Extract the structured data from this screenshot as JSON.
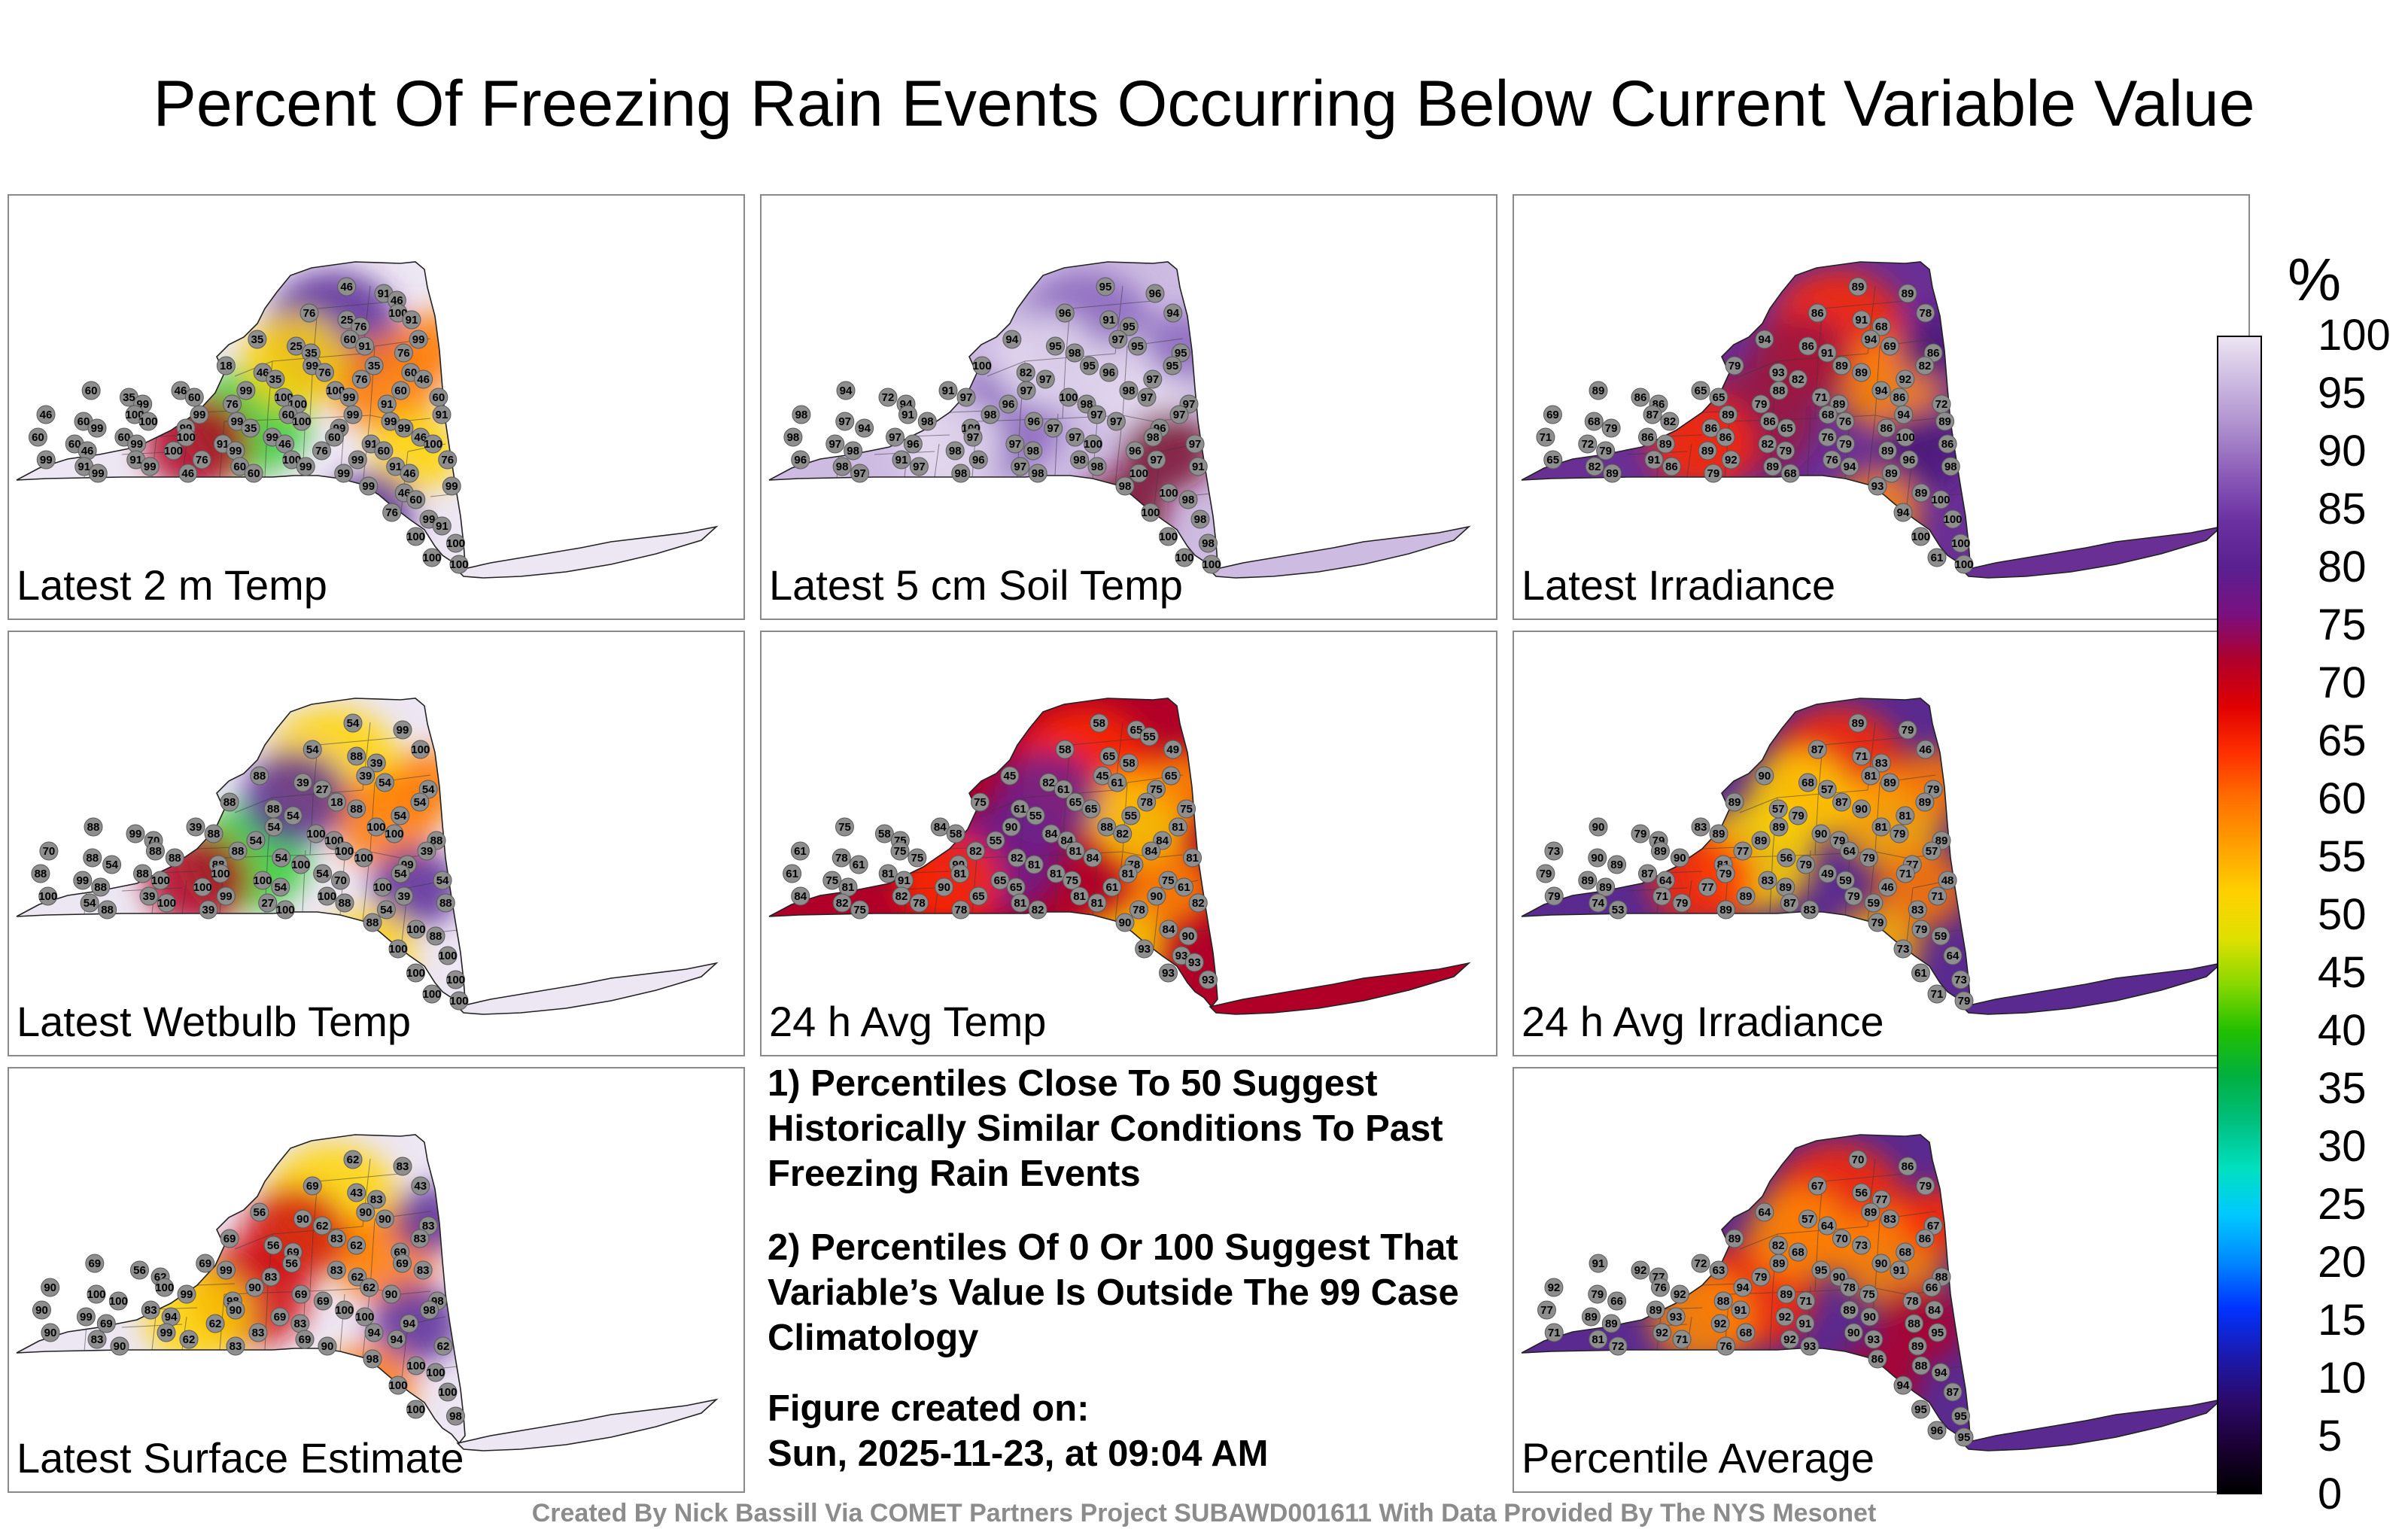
{
  "title": "Percent Of Freezing Rain Events Occurring Below Current Variable Value",
  "panels": [
    {
      "label": "Latest 2 m Temp",
      "station_values": [
        46,
        91,
        46,
        76,
        25,
        76,
        100,
        91,
        35,
        25,
        35,
        60,
        91,
        76,
        99,
        18,
        46,
        35,
        99,
        76,
        76,
        35,
        60,
        46,
        60,
        35,
        99,
        46,
        60,
        76,
        99,
        100,
        100,
        100,
        99,
        91,
        60,
        60,
        46,
        60,
        99,
        100,
        100,
        99,
        99,
        99,
        35,
        60,
        100,
        99,
        99,
        99,
        99,
        91,
        60,
        60,
        46,
        60,
        99,
        100,
        100,
        91,
        99,
        99,
        46,
        76,
        60,
        91,
        60,
        46,
        100,
        99,
        91,
        99,
        91,
        99,
        46,
        76,
        60,
        60,
        100,
        99,
        99,
        99,
        91,
        46,
        76,
        99,
        46,
        60,
        99,
        76,
        99,
        91,
        100,
        100,
        100,
        100
      ]
    },
    {
      "label": "Latest 5 cm Soil Temp",
      "station_values": [
        95,
        96,
        96,
        91,
        95,
        94,
        94,
        95,
        98,
        97,
        95,
        95,
        100,
        82,
        97,
        95,
        96,
        97,
        95,
        94,
        72,
        94,
        91,
        97,
        96,
        97,
        100,
        98,
        98,
        97,
        97,
        98,
        97,
        94,
        91,
        98,
        100,
        98,
        96,
        97,
        97,
        97,
        96,
        97,
        98,
        97,
        98,
        97,
        96,
        98,
        97,
        97,
        98,
        97,
        100,
        96,
        98,
        97,
        96,
        98,
        97,
        91,
        97,
        98,
        96,
        97,
        98,
        98,
        98,
        100,
        97,
        91,
        98,
        100,
        98,
        100,
        98,
        100,
        98,
        100,
        100
      ]
    },
    {
      "label": "Latest Irradiance",
      "station_values": [
        89,
        89,
        86,
        91,
        68,
        78,
        94,
        86,
        91,
        94,
        69,
        86,
        79,
        93,
        82,
        89,
        89,
        92,
        82,
        89,
        86,
        86,
        65,
        65,
        79,
        88,
        71,
        89,
        94,
        86,
        72,
        69,
        68,
        79,
        87,
        82,
        86,
        89,
        86,
        65,
        68,
        76,
        86,
        94,
        89,
        71,
        72,
        79,
        86,
        89,
        89,
        86,
        82,
        79,
        76,
        79,
        89,
        100,
        86,
        65,
        82,
        89,
        91,
        86,
        79,
        92,
        89,
        68,
        76,
        94,
        89,
        96,
        98,
        93,
        89,
        100,
        94,
        100,
        100,
        100,
        61,
        100
      ]
    },
    {
      "label": "Latest Wetbulb Temp",
      "station_values": [
        54,
        99,
        54,
        88,
        39,
        100,
        88,
        39,
        27,
        39,
        54,
        54,
        88,
        88,
        54,
        18,
        88,
        54,
        54,
        88,
        99,
        70,
        39,
        88,
        54,
        54,
        100,
        100,
        100,
        100,
        88,
        70,
        88,
        54,
        88,
        88,
        88,
        88,
        54,
        100,
        100,
        100,
        99,
        39,
        88,
        99,
        88,
        88,
        100,
        100,
        100,
        100,
        54,
        54,
        70,
        100,
        54,
        54,
        100,
        54,
        88,
        39,
        100,
        39,
        99,
        27,
        100,
        100,
        88,
        54,
        39,
        88,
        88,
        100,
        88,
        100,
        100,
        100,
        100,
        100,
        100
      ]
    },
    {
      "label": "24 h Avg Temp",
      "station_values": [
        58,
        65,
        55,
        58,
        65,
        58,
        49,
        45,
        82,
        61,
        45,
        61,
        75,
        65,
        75,
        61,
        55,
        65,
        65,
        55,
        78,
        75,
        75,
        58,
        75,
        84,
        58,
        55,
        90,
        84,
        84,
        88,
        82,
        84,
        81,
        61,
        78,
        61,
        75,
        75,
        90,
        82,
        82,
        81,
        81,
        84,
        78,
        84,
        81,
        61,
        75,
        81,
        81,
        91,
        90,
        81,
        65,
        65,
        81,
        75,
        61,
        81,
        75,
        61,
        84,
        82,
        75,
        82,
        78,
        78,
        65,
        81,
        82,
        81,
        81,
        78,
        90,
        82,
        90,
        84,
        90,
        93,
        93,
        93,
        93,
        93
      ]
    },
    {
      "label": "24 h Avg Irradiance",
      "station_values": [
        89,
        79,
        87,
        71,
        83,
        46,
        90,
        68,
        57,
        81,
        89,
        79,
        89,
        57,
        79,
        87,
        90,
        81,
        89,
        90,
        79,
        79,
        83,
        89,
        89,
        89,
        90,
        79,
        81,
        79,
        89,
        73,
        90,
        89,
        89,
        90,
        81,
        77,
        56,
        79,
        64,
        79,
        77,
        57,
        79,
        89,
        89,
        87,
        64,
        77,
        79,
        83,
        89,
        49,
        59,
        46,
        71,
        48,
        79,
        74,
        53,
        71,
        79,
        89,
        89,
        87,
        83,
        79,
        59,
        83,
        71,
        79,
        79,
        59,
        73,
        64,
        61,
        73,
        71,
        79
      ]
    },
    {
      "label": "Latest Surface Estimate",
      "station_values": [
        62,
        83,
        69,
        43,
        83,
        43,
        56,
        90,
        62,
        90,
        90,
        83,
        69,
        56,
        69,
        83,
        62,
        69,
        83,
        69,
        56,
        62,
        69,
        99,
        83,
        56,
        83,
        62,
        69,
        83,
        90,
        100,
        100,
        100,
        99,
        98,
        90,
        69,
        69,
        62,
        90,
        98,
        90,
        99,
        69,
        83,
        94,
        62,
        90,
        69,
        83,
        100,
        100,
        94,
        98,
        90,
        83,
        90,
        99,
        62,
        83,
        83,
        69,
        90,
        94,
        94,
        62,
        98,
        100,
        100,
        100,
        100,
        100,
        98
      ]
    },
    {
      "label": "Percentile Average",
      "station_values": [
        70,
        86,
        67,
        56,
        77,
        79,
        64,
        57,
        64,
        89,
        83,
        67,
        89,
        82,
        68,
        70,
        73,
        68,
        86,
        91,
        92,
        77,
        72,
        63,
        79,
        89,
        95,
        90,
        90,
        91,
        88,
        92,
        79,
        66,
        76,
        92,
        88,
        94,
        89,
        71,
        78,
        75,
        78,
        66,
        77,
        89,
        89,
        89,
        93,
        92,
        91,
        92,
        91,
        89,
        90,
        88,
        84,
        71,
        81,
        72,
        92,
        71,
        76,
        68,
        92,
        93,
        90,
        93,
        89,
        95,
        86,
        88,
        94,
        94,
        87,
        95,
        95,
        96,
        95
      ]
    }
  ],
  "notes": {
    "note1": "1) Percentiles Close To 50 Suggest Historically Similar Conditions To Past Freezing Rain Events",
    "note2": "2) Percentiles Of 0 Or 100 Suggest That Variable’s Value Is Outside The 99 Case Climatology",
    "created_label": "Figure created on:",
    "created_value": "Sun, 2025-11-23, at 09:04 AM"
  },
  "credit": "Created By Nick Bassill Via COMET Partners Project SUBAWD001611 With Data Provided By The NYS Mesonet",
  "colorbar": {
    "unit": "%",
    "ticks": [
      "100",
      "95",
      "90",
      "85",
      "80",
      "75",
      "70",
      "65",
      "60",
      "55",
      "50",
      "45",
      "40",
      "35",
      "30",
      "25",
      "20",
      "15",
      "10",
      "5",
      "0"
    ],
    "colors": [
      "#000000",
      "#1a0033",
      "#2b0a6b",
      "#1a1ab0",
      "#0033ff",
      "#0088ff",
      "#00c8ff",
      "#00e0c0",
      "#00c080",
      "#00b040",
      "#22c000",
      "#88d800",
      "#e0e000",
      "#ffd000",
      "#ffa000",
      "#ff7000",
      "#ff3000",
      "#e00000",
      "#b0002a",
      "#7a1080",
      "#5a2090",
      "#6a30a0",
      "#8a5ab8",
      "#ab8ccc",
      "#cbb8e0",
      "#ece4f2"
    ]
  },
  "panel_palettes": {
    "p0": {
      "base": "#ede6f3",
      "accents": [
        "#5a2a96",
        "#ff7a00",
        "#ffd400",
        "#33cc33",
        "#b00020"
      ]
    },
    "p1": {
      "base": "#cdbbe2",
      "accents": [
        "#8a66be",
        "#e6dcf0",
        "#7a1030"
      ]
    },
    "p2": {
      "base": "#6a2f95",
      "accents": [
        "#ff2a00",
        "#ff8a00",
        "#4a1a7a",
        "#9a1540"
      ]
    },
    "p3": {
      "base": "#ede6f3",
      "accents": [
        "#ffd400",
        "#ff7a00",
        "#5a2a96",
        "#33cc33",
        "#b00020"
      ]
    },
    "p4": {
      "base": "#b00028",
      "accents": [
        "#ff2a00",
        "#ffd400",
        "#ff8a00",
        "#6a2090"
      ]
    },
    "p5": {
      "base": "#5a2a90",
      "accents": [
        "#ff2a00",
        "#ffb000",
        "#ff7a00",
        "#ffd400"
      ]
    },
    "p6": {
      "base": "#ede6f3",
      "accents": [
        "#ffd400",
        "#ff7a00",
        "#5a2a96",
        "#d01010"
      ]
    },
    "p7": {
      "base": "#5a2a90",
      "accents": [
        "#ff2a00",
        "#ff8a00",
        "#b00028"
      ]
    }
  }
}
